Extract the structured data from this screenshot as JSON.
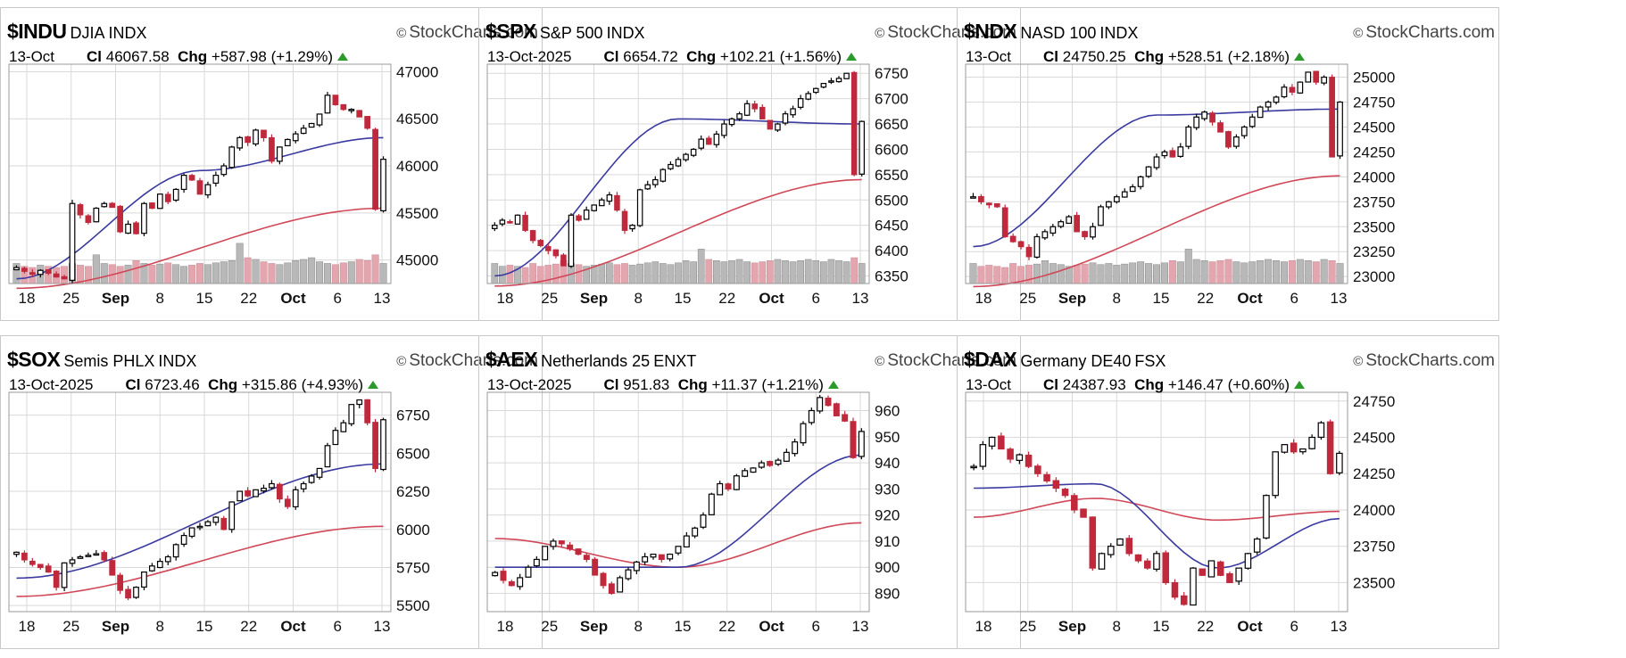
{
  "brand": "StockCharts.com",
  "colors": {
    "up": "#000000",
    "down": "#c0283c",
    "ma_short": "#3a3aa0",
    "ma_long": "#d04858",
    "vol_up": "#b8b8b8",
    "vol_down": "#e3a6ae",
    "grid": "#d9d9d9"
  },
  "panels": [
    {
      "symbol": "$INDU",
      "name": "DJIA",
      "exchange": "INDX",
      "date": "13-Oct",
      "close": "46067.58",
      "change": "+587.98",
      "pct": "(+1.29%)",
      "yticks": [
        45000,
        45500,
        46000,
        46500,
        47000
      ],
      "ylim": [
        44750,
        47080
      ],
      "xticks": [
        {
          "label": "18",
          "bold": false
        },
        {
          "label": "25",
          "bold": false
        },
        {
          "label": "Sep",
          "bold": true
        },
        {
          "label": "8",
          "bold": false
        },
        {
          "label": "15",
          "bold": false
        },
        {
          "label": "22",
          "bold": false
        },
        {
          "label": "Oct",
          "bold": true
        },
        {
          "label": "6",
          "bold": false
        },
        {
          "label": "13",
          "bold": false
        }
      ],
      "chart_data": {
        "type": "candlestick",
        "path": [
          44920,
          44880,
          44850,
          44890,
          44860,
          44820,
          44800,
          45600,
          45480,
          45400,
          45550,
          45600,
          45560,
          45300,
          45380,
          45280,
          45600,
          45550,
          45700,
          45620,
          45750,
          45900,
          45850,
          45700,
          45800,
          45900,
          46000,
          46200,
          46300,
          46250,
          46380,
          46300,
          46050,
          46200,
          46280,
          46340,
          46400,
          46450,
          46550,
          46750,
          46650,
          46600,
          46600,
          46520,
          46400,
          45540,
          46070
        ],
        "ma_short": [
          44800,
          45950,
          46300
        ],
        "ma_long": [
          44700,
          45550
        ],
        "volume": [
          0.35,
          0.3,
          0.28,
          0.32,
          0.3,
          0.28,
          0.3,
          0.35,
          0.32,
          0.3,
          0.5,
          0.35,
          0.33,
          0.3,
          0.32,
          0.4,
          0.35,
          0.32,
          0.34,
          0.36,
          0.33,
          0.3,
          0.32,
          0.35,
          0.33,
          0.36,
          0.38,
          0.4,
          0.7,
          0.45,
          0.42,
          0.38,
          0.35,
          0.33,
          0.36,
          0.4,
          0.42,
          0.45,
          0.38,
          0.35,
          0.33,
          0.36,
          0.38,
          0.42,
          0.4,
          0.5,
          0.35
        ]
      }
    },
    {
      "symbol": "$SPX",
      "name": "S&P 500",
      "exchange": "INDX",
      "date": "13-Oct-2025",
      "close": "6654.72",
      "change": "+102.21",
      "pct": "(+1.56%)",
      "yticks": [
        6350,
        6400,
        6450,
        6500,
        6550,
        6600,
        6650,
        6700,
        6750
      ],
      "ylim": [
        6335,
        6768
      ],
      "xticks": [
        {
          "label": "18",
          "bold": false
        },
        {
          "label": "25",
          "bold": false
        },
        {
          "label": "Sep",
          "bold": true
        },
        {
          "label": "8",
          "bold": false
        },
        {
          "label": "15",
          "bold": false
        },
        {
          "label": "22",
          "bold": false
        },
        {
          "label": "Oct",
          "bold": true
        },
        {
          "label": "6",
          "bold": false
        },
        {
          "label": "13",
          "bold": false
        }
      ],
      "chart_data": {
        "type": "candlestick",
        "path": [
          6450,
          6460,
          6455,
          6470,
          6440,
          6420,
          6410,
          6400,
          6390,
          6370,
          6470,
          6460,
          6480,
          6490,
          6500,
          6510,
          6480,
          6440,
          6450,
          6520,
          6530,
          6540,
          6560,
          6570,
          6580,
          6590,
          6600,
          6620,
          6610,
          6630,
          6650,
          6660,
          6670,
          6690,
          6680,
          6660,
          6640,
          6650,
          6670,
          6680,
          6700,
          6710,
          6720,
          6730,
          6735,
          6740,
          6750,
          6550,
          6655
        ],
        "ma_short": [
          6350,
          6660,
          6650
        ],
        "ma_long": [
          6330,
          6540
        ],
        "volume": [
          0.35,
          0.3,
          0.32,
          0.3,
          0.28,
          0.35,
          0.3,
          0.32,
          0.34,
          0.4,
          0.35,
          0.33,
          0.3,
          0.32,
          0.34,
          0.36,
          0.33,
          0.35,
          0.32,
          0.34,
          0.36,
          0.38,
          0.35,
          0.33,
          0.36,
          0.4,
          0.38,
          0.6,
          0.42,
          0.4,
          0.38,
          0.4,
          0.42,
          0.38,
          0.36,
          0.38,
          0.4,
          0.42,
          0.4,
          0.38,
          0.4,
          0.42,
          0.4,
          0.38,
          0.42,
          0.4,
          0.38,
          0.45,
          0.35
        ]
      }
    },
    {
      "symbol": "$NDX",
      "name": "NASD 100",
      "exchange": "INDX",
      "date": "13-Oct",
      "close": "24750.25",
      "change": "+528.51",
      "pct": "(+2.18%)",
      "yticks": [
        23000,
        23250,
        23500,
        23750,
        24000,
        24250,
        24500,
        24750,
        25000
      ],
      "ylim": [
        22930,
        25130
      ],
      "xticks": [
        {
          "label": "18",
          "bold": false
        },
        {
          "label": "25",
          "bold": false
        },
        {
          "label": "Sep",
          "bold": true
        },
        {
          "label": "8",
          "bold": false
        },
        {
          "label": "15",
          "bold": false
        },
        {
          "label": "22",
          "bold": false
        },
        {
          "label": "Oct",
          "bold": true
        },
        {
          "label": "6",
          "bold": false
        },
        {
          "label": "13",
          "bold": false
        }
      ],
      "chart_data": {
        "type": "candlestick",
        "path": [
          23800,
          23750,
          23720,
          23700,
          23400,
          23350,
          23300,
          23200,
          23400,
          23450,
          23500,
          23550,
          23600,
          23450,
          23400,
          23500,
          23700,
          23750,
          23800,
          23850,
          23900,
          24000,
          24100,
          24200,
          24250,
          24200,
          24300,
          24500,
          24600,
          24650,
          24550,
          24450,
          24300,
          24400,
          24500,
          24600,
          24700,
          24750,
          24800,
          24900,
          24850,
          24950,
          25050,
          24950,
          25000,
          24200,
          24750
        ],
        "ma_short": [
          23300,
          24620,
          24680
        ],
        "ma_long": [
          22900,
          24010
        ],
        "volume": [
          0.35,
          0.3,
          0.32,
          0.3,
          0.28,
          0.35,
          0.3,
          0.32,
          0.34,
          0.4,
          0.35,
          0.33,
          0.3,
          0.32,
          0.34,
          0.36,
          0.33,
          0.35,
          0.32,
          0.34,
          0.36,
          0.38,
          0.35,
          0.33,
          0.36,
          0.4,
          0.38,
          0.6,
          0.42,
          0.4,
          0.38,
          0.4,
          0.42,
          0.38,
          0.36,
          0.38,
          0.4,
          0.42,
          0.4,
          0.38,
          0.4,
          0.42,
          0.4,
          0.38,
          0.42,
          0.4,
          0.35
        ]
      }
    },
    {
      "symbol": "$SOX",
      "name": "Semis PHLX",
      "exchange": "INDX",
      "date": "13-Oct-2025",
      "close": "6723.46",
      "change": "+315.86",
      "pct": "(+4.93%)",
      "yticks": [
        5500,
        5750,
        6000,
        6250,
        6500,
        6750
      ],
      "ylim": [
        5460,
        6900
      ],
      "xticks": [
        {
          "label": "18",
          "bold": false
        },
        {
          "label": "25",
          "bold": false
        },
        {
          "label": "Sep",
          "bold": true
        },
        {
          "label": "8",
          "bold": false
        },
        {
          "label": "15",
          "bold": false
        },
        {
          "label": "22",
          "bold": false
        },
        {
          "label": "Oct",
          "bold": true
        },
        {
          "label": "6",
          "bold": false
        },
        {
          "label": "13",
          "bold": false
        }
      ],
      "chart_data": {
        "type": "candlestick",
        "path": [
          5850,
          5800,
          5770,
          5750,
          5720,
          5620,
          5780,
          5800,
          5820,
          5830,
          5840,
          5800,
          5700,
          5600,
          5550,
          5620,
          5720,
          5760,
          5790,
          5820,
          5900,
          5960,
          6010,
          6020,
          6050,
          6080,
          6000,
          6180,
          6250,
          6220,
          6260,
          6270,
          6300,
          6200,
          6150,
          6260,
          6300,
          6350,
          6400,
          6550,
          6650,
          6700,
          6820,
          6850,
          6700,
          6400,
          6720
        ],
        "ma_short": [
          5680,
          6430
        ],
        "ma_long": [
          5560,
          6020
        ],
        "volume": []
      }
    },
    {
      "symbol": "$AEX",
      "name": "Netherlands 25",
      "exchange": "ENXT",
      "date": "13-Oct-2025",
      "close": "951.83",
      "change": "+11.37",
      "pct": "(+1.21%)",
      "yticks": [
        890,
        900,
        910,
        920,
        930,
        940,
        950,
        960
      ],
      "ylim": [
        883,
        967
      ],
      "xticks": [
        {
          "label": "18",
          "bold": false
        },
        {
          "label": "25",
          "bold": false
        },
        {
          "label": "Sep",
          "bold": true
        },
        {
          "label": "8",
          "bold": false
        },
        {
          "label": "15",
          "bold": false
        },
        {
          "label": "22",
          "bold": false
        },
        {
          "label": "Oct",
          "bold": true
        },
        {
          "label": "6",
          "bold": false
        },
        {
          "label": "13",
          "bold": false
        }
      ],
      "chart_data": {
        "type": "candlestick",
        "path": [
          898,
          895,
          893,
          896,
          900,
          903,
          908,
          910,
          909,
          907,
          905,
          903,
          897,
          893,
          890,
          896,
          899,
          902,
          904,
          905,
          903,
          905,
          908,
          912,
          915,
          920,
          928,
          932,
          930,
          935,
          937,
          938,
          940,
          939,
          941,
          944,
          948,
          955,
          960,
          965,
          962,
          958,
          956,
          942,
          952
        ],
        "ma_short": [
          900,
          900,
          943
        ],
        "ma_long": [
          911,
          900,
          917
        ],
        "volume": []
      }
    },
    {
      "symbol": "$DAX",
      "name": "Germany DE40",
      "exchange": "FSX",
      "date": "13-Oct",
      "close": "24387.93",
      "change": "+146.47",
      "pct": "(+0.60%)",
      "yticks": [
        23500,
        23750,
        24000,
        24250,
        24500,
        24750
      ],
      "ylim": [
        23300,
        24810
      ],
      "xticks": [
        {
          "label": "18",
          "bold": false
        },
        {
          "label": "25",
          "bold": false
        },
        {
          "label": "Sep",
          "bold": true
        },
        {
          "label": "8",
          "bold": false
        },
        {
          "label": "15",
          "bold": false
        },
        {
          "label": "22",
          "bold": false
        },
        {
          "label": "Oct",
          "bold": true
        },
        {
          "label": "6",
          "bold": false
        },
        {
          "label": "13",
          "bold": false
        }
      ],
      "chart_data": {
        "type": "candlestick",
        "path": [
          24300,
          24450,
          24500,
          24420,
          24350,
          24380,
          24300,
          24250,
          24200,
          24150,
          24100,
          24000,
          23950,
          23600,
          23700,
          23750,
          23800,
          23700,
          23650,
          23600,
          23700,
          23500,
          23400,
          23350,
          23600,
          23550,
          23650,
          23550,
          23500,
          23600,
          23700,
          23800,
          24100,
          24400,
          24450,
          24400,
          24420,
          24500,
          24600,
          24250,
          24390
        ],
        "ma_short": [
          24150,
          24180,
          23600,
          23940
        ],
        "ma_long": [
          23950,
          24080,
          23930,
          23990
        ],
        "volume": []
      }
    }
  ]
}
